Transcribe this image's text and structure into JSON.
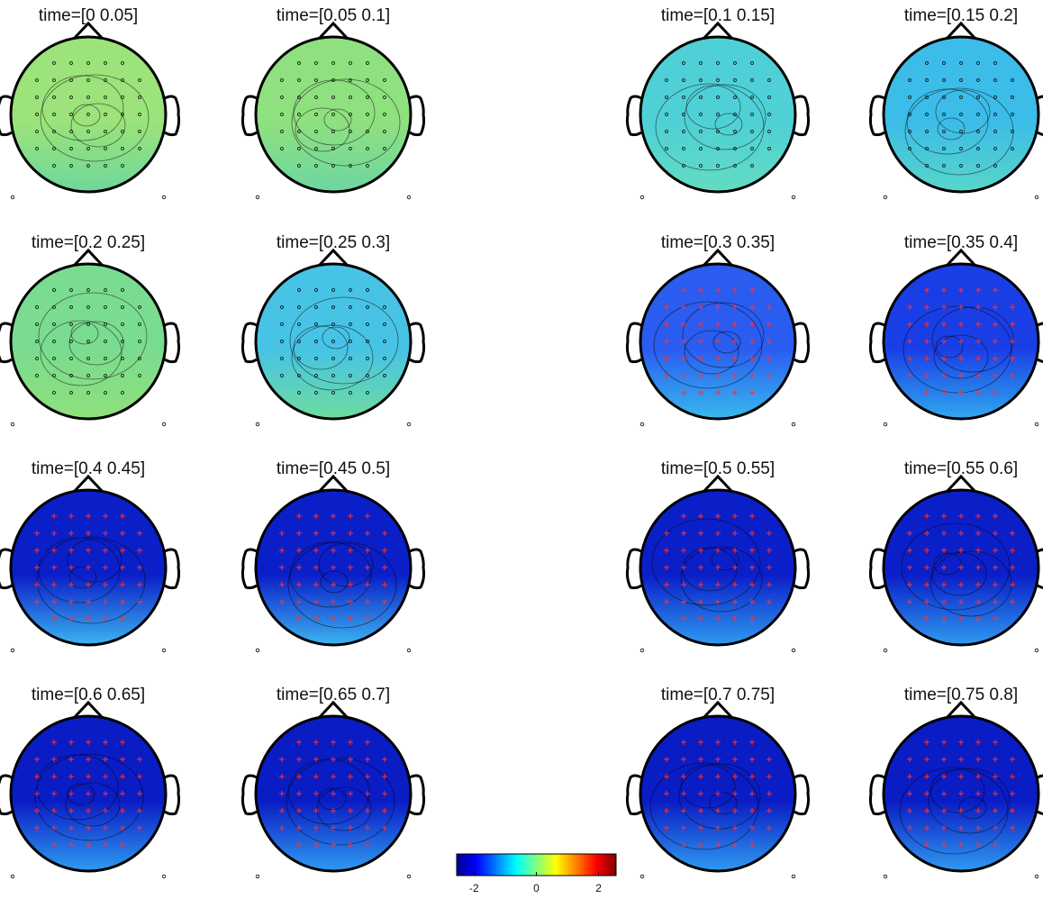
{
  "panels": [
    {
      "title": "time=[0 0.05]"
    },
    {
      "title": "time=[0.05 0.1]"
    },
    {
      "title": "time=[0.1 0.15]"
    },
    {
      "title": "time=[0.15 0.2]"
    },
    {
      "title": "time=[0.2 0.25]"
    },
    {
      "title": "time=[0.25 0.3]"
    },
    {
      "title": "time=[0.3 0.35]"
    },
    {
      "title": "time=[0.35 0.4]"
    },
    {
      "title": "time=[0.4 0.45]"
    },
    {
      "title": "time=[0.45 0.5]"
    },
    {
      "title": "time=[0.5 0.55]"
    },
    {
      "title": "time=[0.55 0.6]"
    },
    {
      "title": "time=[0.6 0.65]"
    },
    {
      "title": "time=[0.65 0.7]"
    },
    {
      "title": "time=[0.7 0.75]"
    },
    {
      "title": "time=[0.75 0.8]"
    }
  ],
  "colorbar": {
    "lim": [
      -2.56,
      2.56
    ],
    "ticks": [
      -2,
      0,
      2
    ]
  }
}
